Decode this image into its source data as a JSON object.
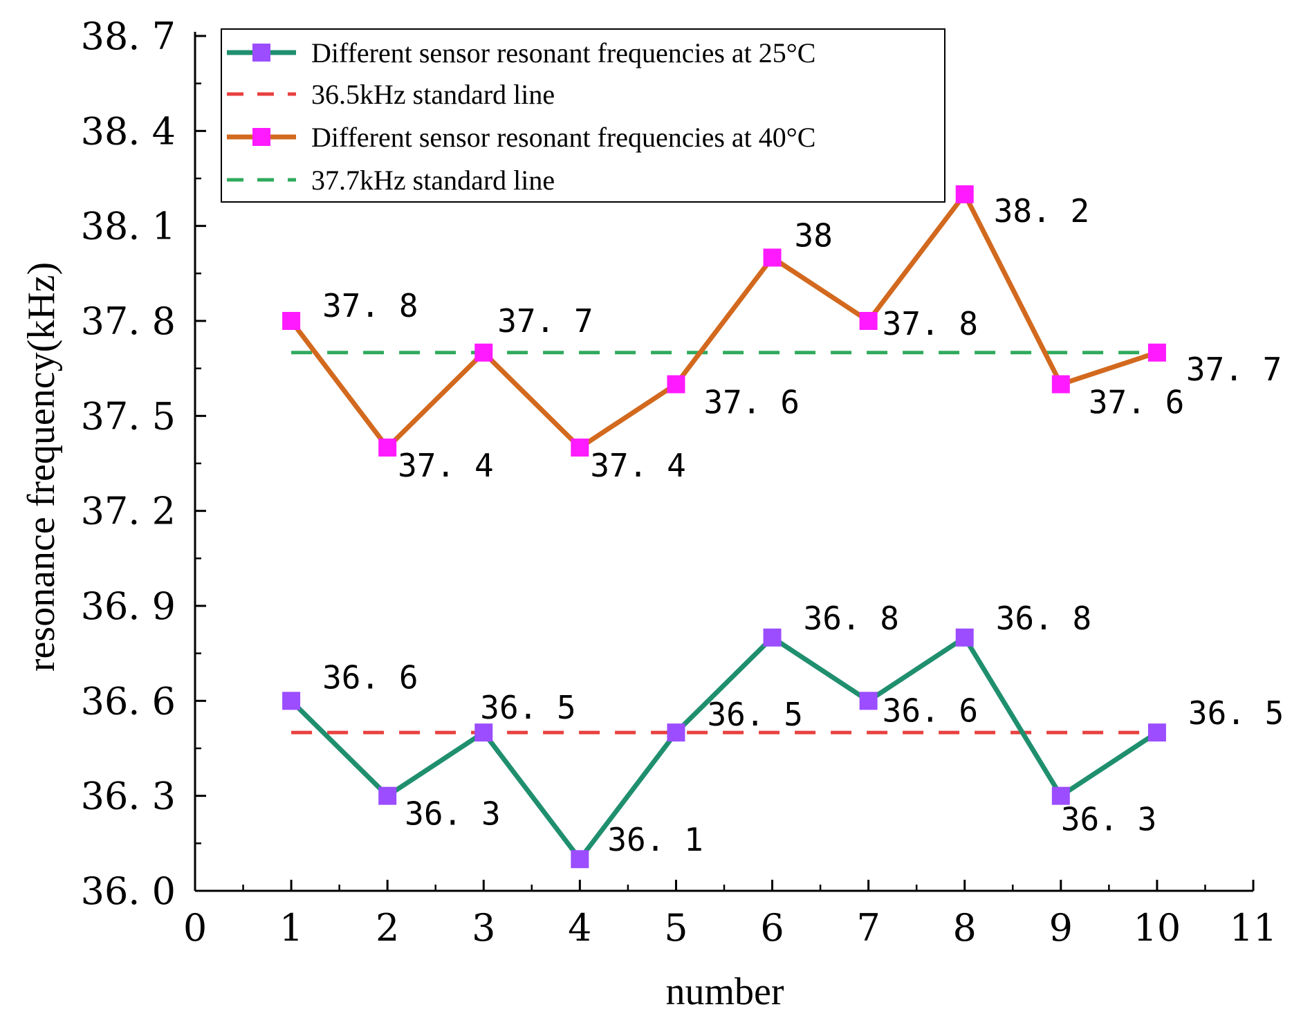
{
  "chart_data": {
    "type": "line",
    "title": "",
    "xlabel": "number",
    "ylabel": "resonance frequency(kHz)",
    "xlim": [
      0,
      11
    ],
    "ylim": [
      36.0,
      38.7
    ],
    "x_ticks": [
      "0",
      "1",
      "2",
      "3",
      "4",
      "5",
      "6",
      "7",
      "8",
      "9",
      "10",
      "11"
    ],
    "y_ticks": [
      "36.0",
      "36.3",
      "36.6",
      "36.9",
      "37.2",
      "37.5",
      "37.8",
      "38.1",
      "38.4",
      "38.7"
    ],
    "x": [
      1,
      2,
      3,
      4,
      5,
      6,
      7,
      8,
      9,
      10
    ],
    "series": [
      {
        "name": "Different sensor resonant frequencies at 25°C",
        "values": [
          36.6,
          36.3,
          36.5,
          36.1,
          36.5,
          36.8,
          36.6,
          36.8,
          36.3,
          36.5
        ],
        "labels": [
          "36.6",
          "36.3",
          "36.5",
          "36.1",
          "36.5",
          "36.8",
          "36.6",
          "36.8",
          "36.3",
          "36.5"
        ],
        "line_color": "#1f8f6e",
        "marker_color": "#9b4dff"
      },
      {
        "name": "Different sensor resonant frequencies at 40°C",
        "values": [
          37.8,
          37.4,
          37.7,
          37.4,
          37.6,
          38.0,
          37.8,
          38.2,
          37.6,
          37.7
        ],
        "labels": [
          "37.8",
          "37.4",
          "37.7",
          "37.4",
          "37.6",
          "38",
          "37.8",
          "38.2",
          "37.6",
          "37.7"
        ],
        "line_color": "#d2691e",
        "marker_color": "#ff1aff"
      }
    ],
    "reference_lines": [
      {
        "name": "36.5kHz standard line",
        "y": 36.5,
        "x_range": [
          1,
          10
        ],
        "color": "#e84040"
      },
      {
        "name": "37.7kHz standard line",
        "y": 37.7,
        "x_range": [
          1,
          10
        ],
        "color": "#2eaa5c"
      }
    ],
    "legend": {
      "position": "top-left",
      "entries": [
        "Different sensor resonant frequencies at 25°C",
        "36.5kHz standard line",
        "Different sensor resonant frequencies at 40°C",
        "37.7kHz standard line"
      ]
    },
    "grid": false
  }
}
